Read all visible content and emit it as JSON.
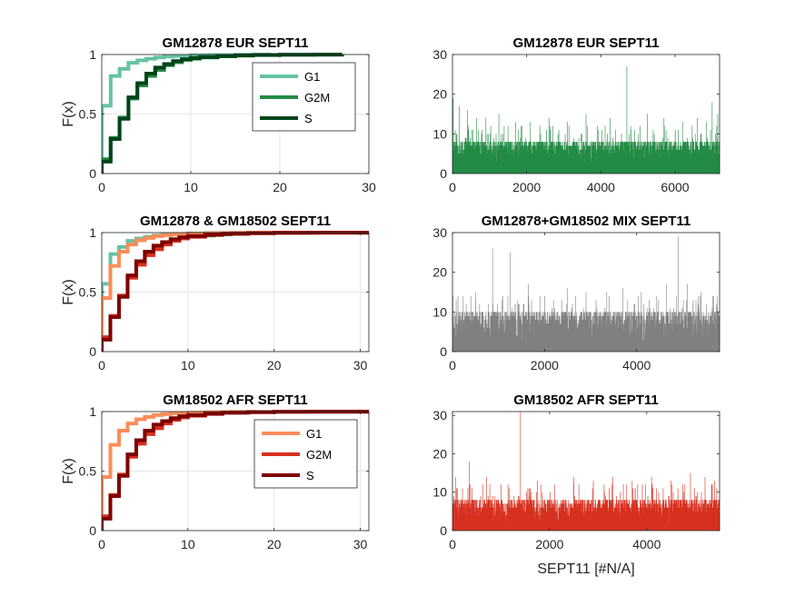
{
  "chart_data": [
    {
      "type": "line",
      "subtype": "ecdf",
      "title": "GM12878 EUR SEPT11",
      "ylabel": "F(x)",
      "xlim": [
        0,
        30
      ],
      "ylim": [
        0,
        1
      ],
      "xticks": [
        0,
        10,
        20,
        30
      ],
      "yticks": [
        0,
        0.5,
        1
      ],
      "grid": true,
      "legend": "top-right",
      "series": [
        {
          "name": "G1",
          "color": "#66c2a4",
          "x": [
            0,
            1,
            2,
            3,
            4,
            5,
            6,
            7,
            8,
            10,
            12,
            15,
            19
          ],
          "y": [
            0.57,
            0.82,
            0.88,
            0.93,
            0.95,
            0.965,
            0.975,
            0.983,
            0.988,
            0.993,
            0.996,
            0.999,
            1.0
          ]
        },
        {
          "name": "G2M",
          "color": "#238b45",
          "x": [
            0,
            1,
            2,
            3,
            4,
            5,
            6,
            7,
            8,
            9,
            10,
            11,
            13,
            15,
            17,
            20,
            24,
            27
          ],
          "y": [
            0.12,
            0.3,
            0.47,
            0.63,
            0.74,
            0.82,
            0.87,
            0.91,
            0.935,
            0.955,
            0.965,
            0.975,
            0.985,
            0.99,
            0.995,
            0.998,
            0.999,
            1.0
          ]
        },
        {
          "name": "S",
          "color": "#00441b",
          "x": [
            0,
            1,
            2,
            3,
            4,
            5,
            6,
            7,
            8,
            9,
            10,
            11,
            13,
            15,
            17,
            20,
            24,
            27
          ],
          "y": [
            0.1,
            0.29,
            0.46,
            0.64,
            0.76,
            0.84,
            0.89,
            0.92,
            0.945,
            0.96,
            0.97,
            0.978,
            0.987,
            0.992,
            0.996,
            0.998,
            0.999,
            1.0
          ]
        }
      ]
    },
    {
      "type": "bar",
      "title": "GM12878 EUR SEPT11",
      "color": "#238b45",
      "n_points": 7200,
      "xlim": [
        0,
        7200
      ],
      "ylim": [
        0,
        30
      ],
      "xticks": [
        0,
        2000,
        4000,
        6000
      ],
      "yticks": [
        0,
        10,
        20,
        30
      ],
      "seed": 11,
      "typical_max": 8,
      "peaks": [
        [
          20,
          19
        ],
        [
          180,
          17
        ],
        [
          400,
          16
        ],
        [
          650,
          14
        ],
        [
          900,
          14
        ],
        [
          1250,
          15
        ],
        [
          1700,
          13
        ],
        [
          2100,
          13
        ],
        [
          2600,
          14
        ],
        [
          3100,
          13
        ],
        [
          3600,
          15
        ],
        [
          4250,
          14
        ],
        [
          4700,
          27
        ],
        [
          5250,
          15
        ],
        [
          5700,
          14
        ],
        [
          6200,
          13
        ],
        [
          6600,
          14
        ],
        [
          6850,
          13
        ],
        [
          7000,
          18
        ],
        [
          7150,
          15
        ]
      ]
    },
    {
      "type": "line",
      "subtype": "ecdf",
      "title": "GM12878 & GM18502 SEPT11",
      "ylabel": "F(x)",
      "xlim": [
        0,
        31
      ],
      "ylim": [
        0,
        1
      ],
      "xticks": [
        0,
        10,
        20,
        30
      ],
      "yticks": [
        0,
        0.5,
        1
      ],
      "grid": true,
      "legend": "none",
      "series": [
        {
          "name": "",
          "color": "#66c2a4",
          "x": [
            0,
            1,
            2,
            3,
            4,
            5,
            6,
            7,
            8,
            10,
            12,
            15,
            18
          ],
          "y": [
            0.57,
            0.82,
            0.88,
            0.93,
            0.95,
            0.965,
            0.975,
            0.983,
            0.988,
            0.993,
            0.996,
            0.999,
            1.0
          ]
        },
        {
          "name": "",
          "color": "#238b45",
          "x": [
            0,
            1,
            2,
            3,
            4,
            5,
            6,
            7,
            8,
            9,
            10,
            11,
            13,
            15,
            17,
            18
          ],
          "y": [
            0.12,
            0.3,
            0.47,
            0.63,
            0.74,
            0.82,
            0.87,
            0.91,
            0.935,
            0.955,
            0.965,
            0.975,
            0.985,
            0.99,
            0.995,
            1.0
          ]
        },
        {
          "name": "",
          "color": "#fc8d59",
          "x": [
            0,
            1,
            2,
            3,
            4,
            5,
            6,
            7,
            8,
            10,
            12,
            15,
            18,
            31
          ],
          "y": [
            0.45,
            0.72,
            0.84,
            0.9,
            0.935,
            0.955,
            0.97,
            0.978,
            0.985,
            0.99,
            0.995,
            0.998,
            1.0,
            1.0
          ]
        },
        {
          "name": "",
          "color": "#d7301f",
          "x": [
            0,
            1,
            2,
            3,
            4,
            5,
            6,
            7,
            8,
            9,
            10,
            12,
            14,
            17,
            20,
            25,
            31
          ],
          "y": [
            0.12,
            0.3,
            0.47,
            0.62,
            0.73,
            0.81,
            0.86,
            0.9,
            0.93,
            0.95,
            0.965,
            0.98,
            0.99,
            0.995,
            0.998,
            0.999,
            1.0
          ]
        },
        {
          "name": "",
          "color": "#7f0000",
          "x": [
            0,
            1,
            2,
            3,
            4,
            5,
            6,
            7,
            8,
            9,
            10,
            12,
            14,
            17,
            20,
            24,
            31
          ],
          "y": [
            0.1,
            0.29,
            0.46,
            0.64,
            0.76,
            0.84,
            0.89,
            0.92,
            0.945,
            0.96,
            0.97,
            0.982,
            0.99,
            0.995,
            0.998,
            0.999,
            1.0
          ]
        }
      ]
    },
    {
      "type": "bar",
      "title": "GM12878+GM18502 MIX SEPT11",
      "color": "#808080",
      "n_points": 5800,
      "xlim": [
        0,
        5800
      ],
      "ylim": [
        0,
        30
      ],
      "xticks": [
        0,
        2000,
        4000
      ],
      "yticks": [
        0,
        10,
        20,
        30
      ],
      "seed": 23,
      "typical_max": 10,
      "peaks": [
        [
          120,
          14
        ],
        [
          500,
          15
        ],
        [
          870,
          26
        ],
        [
          1250,
          25
        ],
        [
          1650,
          17
        ],
        [
          2000,
          14
        ],
        [
          2500,
          16
        ],
        [
          2900,
          15
        ],
        [
          3350,
          15
        ],
        [
          3700,
          16
        ],
        [
          4100,
          15
        ],
        [
          4650,
          17
        ],
        [
          4900,
          29
        ],
        [
          5100,
          17
        ],
        [
          5400,
          15
        ],
        [
          5650,
          14
        ]
      ]
    },
    {
      "type": "line",
      "subtype": "ecdf",
      "title": "GM18502 AFR SEPT11",
      "ylabel": "F(x)",
      "xlim": [
        0,
        31
      ],
      "ylim": [
        0,
        1
      ],
      "xticks": [
        0,
        10,
        20,
        30
      ],
      "yticks": [
        0,
        0.5,
        1
      ],
      "grid": true,
      "legend": "top-right",
      "series": [
        {
          "name": "G1",
          "color": "#fc8d59",
          "x": [
            0,
            1,
            2,
            3,
            4,
            5,
            6,
            7,
            8,
            10,
            12,
            15,
            18
          ],
          "y": [
            0.45,
            0.72,
            0.84,
            0.9,
            0.935,
            0.955,
            0.97,
            0.978,
            0.985,
            0.99,
            0.995,
            0.998,
            1.0
          ]
        },
        {
          "name": "G2M",
          "color": "#d7301f",
          "x": [
            0,
            1,
            2,
            3,
            4,
            5,
            6,
            7,
            8,
            9,
            10,
            12,
            14,
            17,
            20,
            25,
            31
          ],
          "y": [
            0.12,
            0.3,
            0.47,
            0.62,
            0.73,
            0.81,
            0.86,
            0.9,
            0.93,
            0.95,
            0.965,
            0.98,
            0.99,
            0.995,
            0.998,
            0.999,
            1.0
          ]
        },
        {
          "name": "S",
          "color": "#7f0000",
          "x": [
            0,
            1,
            2,
            3,
            4,
            5,
            6,
            7,
            8,
            9,
            10,
            12,
            14,
            17,
            20,
            24,
            31
          ],
          "y": [
            0.1,
            0.29,
            0.46,
            0.64,
            0.76,
            0.84,
            0.89,
            0.92,
            0.945,
            0.96,
            0.97,
            0.982,
            0.99,
            0.995,
            0.998,
            0.999,
            1.0
          ]
        }
      ]
    },
    {
      "type": "bar",
      "title": "GM18502 AFR SEPT11",
      "xlabel": "SEPT11 [#N/A]",
      "color": "#d7301f",
      "n_points": 5500,
      "xlim": [
        0,
        5500
      ],
      "ylim": [
        0,
        31
      ],
      "xticks": [
        0,
        2000,
        4000
      ],
      "yticks": [
        0,
        10,
        20,
        30
      ],
      "seed": 37,
      "typical_max": 8,
      "peaks": [
        [
          60,
          14
        ],
        [
          350,
          18
        ],
        [
          700,
          14
        ],
        [
          1000,
          12
        ],
        [
          1400,
          31
        ],
        [
          1750,
          13
        ],
        [
          2100,
          12
        ],
        [
          2500,
          14
        ],
        [
          2900,
          13
        ],
        [
          3300,
          14
        ],
        [
          3700,
          13
        ],
        [
          4100,
          14
        ],
        [
          4500,
          13
        ],
        [
          4900,
          15
        ],
        [
          5200,
          14
        ],
        [
          5400,
          13
        ]
      ]
    }
  ]
}
